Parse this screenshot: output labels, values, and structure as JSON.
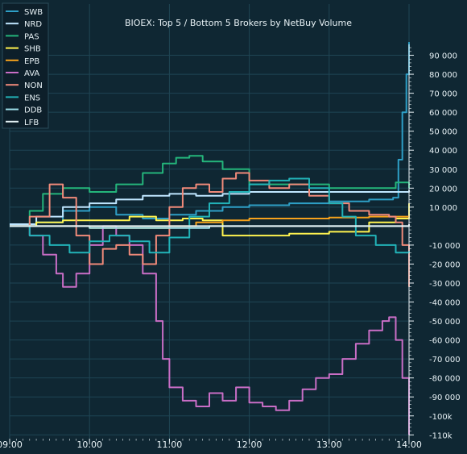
{
  "chart_data": {
    "type": "line",
    "title": "BIOEX: Top 5 / Bottom 5 Brokers by NetBuy Volume",
    "xlabel": "",
    "ylabel": "",
    "x_range": [
      "09:00",
      "14:00"
    ],
    "ylim": [
      -112000,
      100000
    ],
    "grid": true,
    "legend_position": "top-left",
    "background": "#0f2733",
    "grid_color": "#1f4554",
    "x_ticks": [
      "09:00",
      "10:00",
      "11:00",
      "12:00",
      "13:00",
      "14:00"
    ],
    "y_ticks": [
      {
        "v": 90000,
        "label": "90 000"
      },
      {
        "v": 80000,
        "label": "80 000"
      },
      {
        "v": 70000,
        "label": "70 000"
      },
      {
        "v": 60000,
        "label": "60 000"
      },
      {
        "v": 50000,
        "label": "50 000"
      },
      {
        "v": 40000,
        "label": "40 000"
      },
      {
        "v": 30000,
        "label": "30 000"
      },
      {
        "v": 20000,
        "label": "20 000"
      },
      {
        "v": 10000,
        "label": "10 000"
      },
      {
        "v": -10000,
        "label": "-10 000"
      },
      {
        "v": -20000,
        "label": "-20 000"
      },
      {
        "v": -30000,
        "label": "-30 000"
      },
      {
        "v": -40000,
        "label": "-40 000"
      },
      {
        "v": -50000,
        "label": "-50 000"
      },
      {
        "v": -60000,
        "label": "-60 000"
      },
      {
        "v": -70000,
        "label": "-70 000"
      },
      {
        "v": -80000,
        "label": "-80 000"
      },
      {
        "v": -90000,
        "label": "-90 000"
      },
      {
        "v": -100000,
        "label": "-100k"
      },
      {
        "v": -110000,
        "label": "-110k"
      }
    ],
    "series": [
      {
        "name": "SWB",
        "color": "#2e9fc6",
        "points": [
          [
            "09:00",
            0
          ],
          [
            "09:20",
            2000
          ],
          [
            "09:40",
            8000
          ],
          [
            "10:00",
            10000
          ],
          [
            "10:20",
            6000
          ],
          [
            "10:40",
            4000
          ],
          [
            "11:00",
            6000
          ],
          [
            "11:20",
            8000
          ],
          [
            "11:40",
            10000
          ],
          [
            "12:00",
            11000
          ],
          [
            "12:30",
            12000
          ],
          [
            "13:00",
            13000
          ],
          [
            "13:30",
            14000
          ],
          [
            "13:48",
            15000
          ],
          [
            "13:52",
            35000
          ],
          [
            "13:55",
            60000
          ],
          [
            "13:58",
            80000
          ],
          [
            "14:00",
            97000
          ]
        ]
      },
      {
        "name": "NRD",
        "color": "#bfe6ff",
        "points": [
          [
            "09:00",
            1000
          ],
          [
            "09:20",
            5000
          ],
          [
            "09:40",
            10000
          ],
          [
            "10:00",
            12000
          ],
          [
            "10:20",
            14000
          ],
          [
            "10:40",
            16000
          ],
          [
            "11:00",
            17000
          ],
          [
            "11:20",
            16000
          ],
          [
            "11:40",
            17000
          ],
          [
            "12:00",
            18000
          ],
          [
            "12:30",
            18000
          ],
          [
            "13:00",
            18000
          ],
          [
            "13:30",
            18000
          ],
          [
            "14:00",
            19000
          ]
        ]
      },
      {
        "name": "PAS",
        "color": "#24b57b",
        "points": [
          [
            "09:00",
            0
          ],
          [
            "09:15",
            8000
          ],
          [
            "09:25",
            17000
          ],
          [
            "09:40",
            20000
          ],
          [
            "10:00",
            18000
          ],
          [
            "10:20",
            22000
          ],
          [
            "10:40",
            28000
          ],
          [
            "10:55",
            33000
          ],
          [
            "11:05",
            36000
          ],
          [
            "11:15",
            37000
          ],
          [
            "11:25",
            34000
          ],
          [
            "11:40",
            30000
          ],
          [
            "12:00",
            22000
          ],
          [
            "12:30",
            22000
          ],
          [
            "13:00",
            20000
          ],
          [
            "13:30",
            20000
          ],
          [
            "13:50",
            23000
          ],
          [
            "14:00",
            20000
          ]
        ]
      },
      {
        "name": "SHB",
        "color": "#fff34f",
        "points": [
          [
            "09:00",
            0
          ],
          [
            "09:20",
            2000
          ],
          [
            "09:40",
            3000
          ],
          [
            "10:00",
            3000
          ],
          [
            "10:30",
            5000
          ],
          [
            "10:50",
            3000
          ],
          [
            "11:10",
            4000
          ],
          [
            "11:25",
            3000
          ],
          [
            "11:40",
            -5000
          ],
          [
            "12:00",
            -5000
          ],
          [
            "12:30",
            -4000
          ],
          [
            "13:00",
            -3000
          ],
          [
            "13:30",
            2000
          ],
          [
            "13:50",
            4000
          ],
          [
            "14:00",
            12000
          ]
        ]
      },
      {
        "name": "EPB",
        "color": "#f6a21c",
        "points": [
          [
            "09:00",
            0
          ],
          [
            "09:30",
            0
          ],
          [
            "10:00",
            -1000
          ],
          [
            "10:30",
            -1000
          ],
          [
            "11:00",
            0
          ],
          [
            "11:20",
            2000
          ],
          [
            "11:40",
            3000
          ],
          [
            "12:00",
            4000
          ],
          [
            "12:30",
            4000
          ],
          [
            "13:00",
            4500
          ],
          [
            "13:30",
            5000
          ],
          [
            "14:00",
            5000
          ]
        ]
      },
      {
        "name": "AVA",
        "color": "#c96ec6",
        "points": [
          [
            "09:00",
            0
          ],
          [
            "09:15",
            -5000
          ],
          [
            "09:25",
            -15000
          ],
          [
            "09:35",
            -25000
          ],
          [
            "09:40",
            -32000
          ],
          [
            "09:50",
            -25000
          ],
          [
            "10:00",
            -10000
          ],
          [
            "10:10",
            0
          ],
          [
            "10:20",
            -5000
          ],
          [
            "10:30",
            -10000
          ],
          [
            "10:40",
            -25000
          ],
          [
            "10:50",
            -50000
          ],
          [
            "10:55",
            -70000
          ],
          [
            "11:00",
            -85000
          ],
          [
            "11:10",
            -92000
          ],
          [
            "11:20",
            -95000
          ],
          [
            "11:30",
            -88000
          ],
          [
            "11:40",
            -92000
          ],
          [
            "11:50",
            -85000
          ],
          [
            "12:00",
            -93000
          ],
          [
            "12:10",
            -95000
          ],
          [
            "12:20",
            -97000
          ],
          [
            "12:30",
            -92000
          ],
          [
            "12:40",
            -86000
          ],
          [
            "12:50",
            -80000
          ],
          [
            "13:00",
            -78000
          ],
          [
            "13:10",
            -70000
          ],
          [
            "13:20",
            -62000
          ],
          [
            "13:30",
            -55000
          ],
          [
            "13:40",
            -50000
          ],
          [
            "13:45",
            -48000
          ],
          [
            "13:50",
            -60000
          ],
          [
            "13:55",
            -80000
          ],
          [
            "14:00",
            -110000
          ]
        ]
      },
      {
        "name": "NON",
        "color": "#f08a7a",
        "points": [
          [
            "09:00",
            0
          ],
          [
            "09:15",
            5000
          ],
          [
            "09:30",
            22000
          ],
          [
            "09:40",
            15000
          ],
          [
            "09:50",
            -5000
          ],
          [
            "10:00",
            -20000
          ],
          [
            "10:10",
            -12000
          ],
          [
            "10:20",
            -10000
          ],
          [
            "10:30",
            -15000
          ],
          [
            "10:40",
            -20000
          ],
          [
            "10:50",
            -5000
          ],
          [
            "11:00",
            10000
          ],
          [
            "11:10",
            20000
          ],
          [
            "11:20",
            22000
          ],
          [
            "11:30",
            18000
          ],
          [
            "11:40",
            25000
          ],
          [
            "11:50",
            28000
          ],
          [
            "12:00",
            24000
          ],
          [
            "12:15",
            20000
          ],
          [
            "12:30",
            22000
          ],
          [
            "12:45",
            16000
          ],
          [
            "13:00",
            12000
          ],
          [
            "13:15",
            8000
          ],
          [
            "13:30",
            6000
          ],
          [
            "13:45",
            5000
          ],
          [
            "13:50",
            2000
          ],
          [
            "13:55",
            -10000
          ],
          [
            "14:00",
            -32000
          ]
        ]
      },
      {
        "name": "ENS",
        "color": "#22b3b8",
        "points": [
          [
            "09:00",
            0
          ],
          [
            "09:15",
            -5000
          ],
          [
            "09:30",
            -10000
          ],
          [
            "09:45",
            -14000
          ],
          [
            "10:00",
            -8000
          ],
          [
            "10:15",
            -5000
          ],
          [
            "10:30",
            -8000
          ],
          [
            "10:45",
            -14000
          ],
          [
            "11:00",
            -6000
          ],
          [
            "11:15",
            5000
          ],
          [
            "11:30",
            12000
          ],
          [
            "11:45",
            18000
          ],
          [
            "12:00",
            22000
          ],
          [
            "12:15",
            24000
          ],
          [
            "12:30",
            25000
          ],
          [
            "12:45",
            20000
          ],
          [
            "13:00",
            12000
          ],
          [
            "13:10",
            5000
          ],
          [
            "13:20",
            -5000
          ],
          [
            "13:35",
            -10000
          ],
          [
            "13:50",
            -14000
          ],
          [
            "14:00",
            -13000
          ]
        ]
      },
      {
        "name": "DDB",
        "color": "#9ee0ea",
        "points": [
          [
            "09:00",
            0
          ],
          [
            "09:30",
            0
          ],
          [
            "10:00",
            -1000
          ],
          [
            "10:30",
            -1000
          ],
          [
            "11:00",
            -1000
          ],
          [
            "11:30",
            0
          ],
          [
            "12:00",
            0
          ],
          [
            "12:30",
            0
          ],
          [
            "13:00",
            0
          ],
          [
            "13:30",
            0
          ],
          [
            "14:00",
            0
          ]
        ]
      },
      {
        "name": "LFB",
        "color": "#e6f3f6",
        "points": [
          [
            "09:00",
            0
          ],
          [
            "09:30",
            0
          ],
          [
            "10:00",
            0
          ],
          [
            "10:30",
            0
          ],
          [
            "11:00",
            0
          ],
          [
            "11:30",
            0
          ],
          [
            "12:00",
            0
          ],
          [
            "12:30",
            0
          ],
          [
            "13:00",
            0
          ],
          [
            "13:30",
            0
          ],
          [
            "14:00",
            1000
          ]
        ]
      }
    ]
  }
}
